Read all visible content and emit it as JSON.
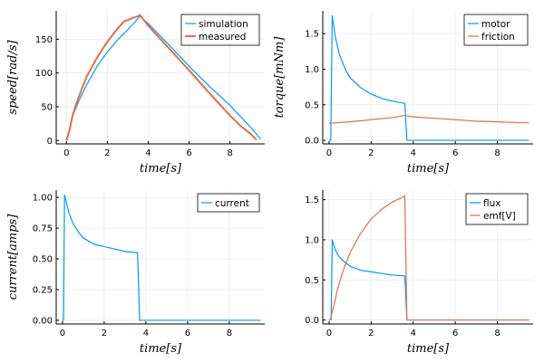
{
  "chart_data": [
    {
      "type": "line",
      "xlabel": "time[s]",
      "ylabel": "speed[rad/s]",
      "xlim": [
        -0.5,
        9.7
      ],
      "ylim": [
        -5,
        192
      ],
      "xticks": [
        0,
        2,
        4,
        6,
        8
      ],
      "yticks": [
        0,
        50,
        100,
        150
      ],
      "ytick_labels": [
        "0",
        "50",
        "100",
        "150"
      ],
      "grid": true,
      "legend": "top-right",
      "series": [
        {
          "name": "simulation",
          "color": "#009af9",
          "width": 1.2,
          "x": [
            0.0,
            0.05,
            0.3,
            0.6,
            1.0,
            1.5,
            2.0,
            2.5,
            3.0,
            3.6,
            4.0,
            5.0,
            6.0,
            7.0,
            8.0,
            9.0,
            9.5
          ],
          "y": [
            0,
            2,
            36,
            58,
            83,
            110,
            131,
            149,
            164,
            184,
            173,
            142,
            110,
            80,
            52,
            20,
            2
          ]
        },
        {
          "name": "measured",
          "color": "#e26f46",
          "width": 2.0,
          "x": [
            0.0,
            0.05,
            0.15,
            0.3,
            0.5,
            0.8,
            1.0,
            1.3,
            1.6,
            2.0,
            2.4,
            2.8,
            3.2,
            3.5,
            3.6,
            3.75,
            4.0,
            5.0,
            6.0,
            7.0,
            8.0,
            8.5,
            9.0,
            9.3
          ],
          "y": [
            0,
            5,
            15,
            37,
            56,
            80,
            95,
            112,
            128,
            146,
            162,
            176,
            181,
            184,
            186,
            180,
            170,
            137,
            104,
            70,
            37,
            22,
            10,
            1
          ]
        }
      ]
    },
    {
      "type": "line",
      "xlabel": "time[s]",
      "ylabel": "torque[mNm]",
      "xlim": [
        -0.3,
        9.7
      ],
      "ylim": [
        -0.05,
        1.82
      ],
      "xticks": [
        0,
        2,
        4,
        6,
        8
      ],
      "yticks": [
        0.0,
        0.5,
        1.0,
        1.5
      ],
      "ytick_labels": [
        "0.0",
        "0.5",
        "1.0",
        "1.5"
      ],
      "grid": true,
      "legend": "top-right",
      "series": [
        {
          "name": "motor",
          "color": "#009af9",
          "width": 1.2,
          "x": [
            0.0,
            0.08,
            0.15,
            0.3,
            0.5,
            0.8,
            1.0,
            1.5,
            2.0,
            2.5,
            3.0,
            3.6,
            3.7,
            3.8,
            5.0,
            7.0,
            9.5
          ],
          "y": [
            0,
            0,
            1.75,
            1.45,
            1.2,
            0.98,
            0.88,
            0.74,
            0.65,
            0.59,
            0.55,
            0.52,
            0.0,
            0.0,
            0.0,
            0.0,
            0.0
          ]
        },
        {
          "name": "friction",
          "color": "#e26f46",
          "width": 1.2,
          "x": [
            0.0,
            1.0,
            2.0,
            3.0,
            3.6,
            4.0,
            5.0,
            6.0,
            7.0,
            8.0,
            9.0,
            9.5
          ],
          "y": [
            0.24,
            0.26,
            0.29,
            0.32,
            0.35,
            0.33,
            0.31,
            0.29,
            0.27,
            0.26,
            0.25,
            0.245
          ]
        }
      ]
    },
    {
      "type": "line",
      "xlabel": "time[s]",
      "ylabel": "current[amps]",
      "xlim": [
        -0.3,
        9.7
      ],
      "ylim": [
        -0.03,
        1.06
      ],
      "xticks": [
        0,
        2,
        4,
        6,
        8
      ],
      "yticks": [
        0.0,
        0.25,
        0.5,
        0.75,
        1.0
      ],
      "ytick_labels": [
        "0.00",
        "0.25",
        "0.50",
        "0.75",
        "1.00"
      ],
      "grid": true,
      "legend": "top-right",
      "series": [
        {
          "name": "current",
          "color": "#009af9",
          "width": 1.2,
          "x": [
            0.0,
            0.05,
            0.1,
            0.3,
            0.5,
            0.8,
            1.0,
            1.5,
            2.0,
            2.5,
            3.0,
            3.6,
            3.7,
            9.5
          ],
          "y": [
            0,
            0,
            1.02,
            0.88,
            0.79,
            0.71,
            0.67,
            0.62,
            0.6,
            0.58,
            0.56,
            0.55,
            0.0,
            0.0
          ]
        }
      ]
    },
    {
      "type": "line",
      "xlabel": "time[s]",
      "ylabel": "",
      "xlim": [
        -0.3,
        9.7
      ],
      "ylim": [
        -0.05,
        1.62
      ],
      "xticks": [
        0,
        2,
        4,
        6,
        8
      ],
      "yticks": [
        0.0,
        0.5,
        1.0,
        1.5
      ],
      "ytick_labels": [
        "0.0",
        "0.5",
        "1.0",
        "1.5"
      ],
      "grid": true,
      "legend": "top-right",
      "series": [
        {
          "name": "flux",
          "color": "#009af9",
          "width": 1.2,
          "x": [
            0.0,
            0.1,
            0.15,
            0.3,
            0.5,
            0.8,
            1.0,
            1.5,
            2.0,
            2.5,
            3.0,
            3.6,
            3.7,
            9.5
          ],
          "y": [
            0,
            0,
            1.0,
            0.87,
            0.78,
            0.71,
            0.67,
            0.62,
            0.6,
            0.58,
            0.56,
            0.55,
            0.0,
            0.0
          ]
        },
        {
          "name": "emf[V]",
          "color": "#e26f46",
          "width": 1.2,
          "x": [
            0.0,
            0.05,
            0.2,
            0.4,
            0.6,
            0.8,
            1.0,
            1.5,
            2.0,
            2.5,
            3.0,
            3.5,
            3.6,
            3.7,
            9.5
          ],
          "y": [
            0,
            0,
            0.15,
            0.38,
            0.56,
            0.71,
            0.84,
            1.08,
            1.26,
            1.38,
            1.47,
            1.53,
            1.55,
            0.0,
            0.0
          ]
        }
      ]
    }
  ]
}
